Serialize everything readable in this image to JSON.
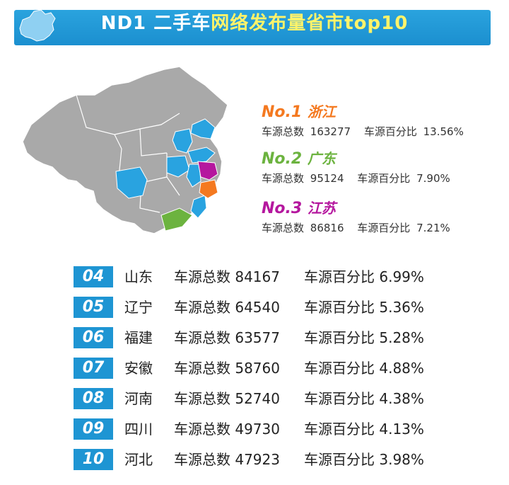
{
  "banner": {
    "title_plain": "ND1 二手车",
    "title_highlight": "网络发布量省市top10"
  },
  "colors": {
    "banner_blue": "#1b8fcf",
    "rank1": "#f47920",
    "rank2": "#6cb33f",
    "rank3": "#b5179e",
    "other_top10": "#29a3e0",
    "map_gray": "#a9a9a9"
  },
  "podium": [
    {
      "rank_label": "No.1",
      "province": "浙江",
      "total_label": "车源总数",
      "total": "163277",
      "pct_label": "车源百分比",
      "pct": "13.56%"
    },
    {
      "rank_label": "No.2",
      "province": "广东",
      "total_label": "车源总数",
      "total": "95124",
      "pct_label": "车源百分比",
      "pct": "7.90%"
    },
    {
      "rank_label": "No.3",
      "province": "江苏",
      "total_label": "车源总数",
      "total": "86816",
      "pct_label": "车源百分比",
      "pct": "7.21%"
    }
  ],
  "list": [
    {
      "rank": "04",
      "province": "山东",
      "total_label": "车源总数",
      "total": "84167",
      "pct_label": "车源百分比",
      "pct": "6.99%"
    },
    {
      "rank": "05",
      "province": "辽宁",
      "total_label": "车源总数",
      "total": "64540",
      "pct_label": "车源百分比",
      "pct": "5.36%"
    },
    {
      "rank": "06",
      "province": "福建",
      "total_label": "车源总数",
      "total": "63577",
      "pct_label": "车源百分比",
      "pct": "5.28%"
    },
    {
      "rank": "07",
      "province": "安徽",
      "total_label": "车源总数",
      "total": "58760",
      "pct_label": "车源百分比",
      "pct": "4.88%"
    },
    {
      "rank": "08",
      "province": "河南",
      "total_label": "车源总数",
      "total": "52740",
      "pct_label": "车源百分比",
      "pct": "4.38%"
    },
    {
      "rank": "09",
      "province": "四川",
      "total_label": "车源总数",
      "total": "49730",
      "pct_label": "车源百分比",
      "pct": "4.13%"
    },
    {
      "rank": "10",
      "province": "河北",
      "total_label": "车源总数",
      "total": "47923",
      "pct_label": "车源百分比",
      "pct": "3.98%"
    }
  ]
}
